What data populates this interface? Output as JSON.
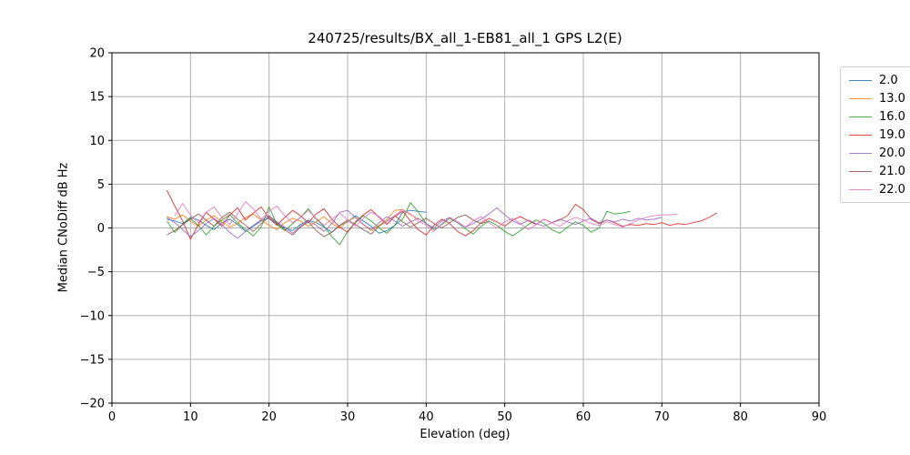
{
  "chart_data": {
    "type": "line",
    "title": "240725/results/BX_all_1-EB81_all_1 GPS L2(E)",
    "xlabel": "Elevation (deg)",
    "ylabel": "Median CNoDiff dB Hz",
    "xlim": [
      0,
      90
    ],
    "ylim": [
      -20,
      20
    ],
    "xticks": [
      0,
      10,
      20,
      30,
      40,
      50,
      60,
      70,
      80,
      90
    ],
    "yticks": [
      -20,
      -15,
      -10,
      -5,
      0,
      5,
      10,
      15,
      20
    ],
    "grid": true,
    "grid_color": "#b0b0b0",
    "spine_color": "#000000",
    "legend_position": "outside-upper-right",
    "series": [
      {
        "name": "2.0",
        "color": "#1f77b4",
        "x_start": 7,
        "x_step": 1,
        "y": [
          1.0,
          0.8,
          0.5,
          1.2,
          0.9,
          0.3,
          -0.2,
          0.6,
          1.0,
          0.4,
          -0.4,
          0.2,
          0.8,
          1.1,
          0.5,
          0.0,
          -0.3,
          0.4,
          0.9,
          0.6,
          0.1,
          -0.5,
          0.3,
          0.7,
          1.4,
          0.8,
          0.2,
          -0.6,
          -0.3,
          0.3,
          1.8,
          2.0,
          1.9,
          1.8
        ]
      },
      {
        "name": "13.0",
        "color": "#ff7f0e",
        "x_start": 7,
        "x_step": 1,
        "y": [
          1.3,
          1.0,
          1.5,
          0.8,
          0.2,
          0.9,
          1.4,
          0.7,
          0.1,
          0.5,
          1.2,
          1.6,
          0.9,
          0.3,
          -0.2,
          0.6,
          1.1,
          0.8,
          0.2,
          0.7,
          1.3,
          0.5,
          0.0,
          0.8,
          1.2,
          0.4,
          -0.3,
          0.3,
          1.0,
          2.0,
          2.1,
          1.5,
          1.0
        ]
      },
      {
        "name": "16.0",
        "color": "#2ca02c",
        "x_start": 7,
        "x_step": 1,
        "y": [
          0.8,
          -0.5,
          0.4,
          1.1,
          0.3,
          -0.8,
          0.2,
          0.9,
          1.5,
          0.6,
          -0.2,
          -0.9,
          0.1,
          2.4,
          0.4,
          -0.3,
          0.5,
          1.2,
          2.2,
          1.0,
          0.2,
          -1.0,
          -1.9,
          -0.4,
          0.6,
          1.4,
          0.8,
          0.0,
          -0.6,
          0.3,
          1.0,
          2.9,
          1.8,
          0.5,
          -0.2,
          0.4,
          1.1,
          0.6,
          -0.1,
          -0.7,
          0.2,
          0.8,
          0.3,
          -0.4,
          -0.9,
          -0.3,
          0.4,
          0.9,
          0.5,
          -0.2,
          -0.6,
          0.1,
          0.7,
          0.3,
          -0.5,
          0.0,
          1.9,
          1.6,
          1.7,
          1.9
        ]
      },
      {
        "name": "19.0",
        "color": "#d62728",
        "x_start": 7,
        "x_step": 1,
        "y": [
          4.3,
          2.5,
          0.8,
          -1.3,
          0.4,
          1.8,
          1.0,
          0.2,
          1.5,
          2.3,
          0.9,
          1.7,
          2.4,
          1.1,
          0.3,
          1.2,
          2.0,
          1.4,
          0.6,
          1.6,
          2.2,
          1.0,
          0.1,
          -0.5,
          0.7,
          1.5,
          2.1,
          1.2,
          0.4,
          1.3,
          1.9,
          0.8,
          -0.2,
          -0.8,
          0.3,
          1.0,
          0.5,
          -0.4,
          -0.9,
          -0.3,
          0.6,
          1.1,
          0.7,
          0.2,
          0.9,
          1.3,
          0.8,
          0.4,
          1.0,
          0.6,
          0.9,
          1.4,
          2.7,
          2.1,
          1.0,
          0.5,
          0.9,
          0.6,
          0.2,
          0.4,
          0.3,
          0.5,
          0.4,
          0.6,
          0.3,
          0.5,
          0.4,
          0.6,
          0.8,
          1.2,
          1.7
        ]
      },
      {
        "name": "20.0",
        "color": "#9467bd",
        "x_start": 7,
        "x_step": 1,
        "y": [
          1.2,
          0.6,
          -0.2,
          -1.0,
          -0.3,
          0.5,
          1.1,
          0.4,
          -0.5,
          -1.2,
          -0.4,
          0.3,
          0.9,
          1.4,
          0.7,
          0.1,
          -0.6,
          0.2,
          0.8,
          0.3,
          -0.4,
          0.5,
          1.8,
          2.0,
          1.2,
          0.4,
          -0.2,
          0.6,
          1.3,
          0.8,
          0.2,
          0.7,
          1.1,
          0.5,
          0.0,
          0.8,
          1.2,
          0.6,
          0.1,
          0.5,
          1.0,
          1.6,
          2.3,
          1.5,
          0.8,
          0.4,
          0.9,
          0.5,
          0.2,
          0.6,
          1.0,
          0.7,
          0.4,
          0.8,
          1.1,
          0.6,
          0.9,
          0.7,
          1.0,
          0.8,
          1.1,
          0.9,
          1.0,
          1.2
        ]
      },
      {
        "name": "21.0",
        "color": "#8c564b",
        "x_start": 7,
        "x_step": 1,
        "y": [
          -0.8,
          -0.3,
          0.4,
          1.0,
          1.6,
          0.9,
          0.2,
          1.2,
          1.8,
          1.0,
          0.3,
          -0.4,
          0.5,
          1.3,
          0.6,
          -0.2,
          -0.8,
          0.1,
          0.7,
          -0.3,
          -1.0,
          -0.5,
          0.3,
          0.9,
          0.4,
          -0.2,
          -0.7,
          0.2,
          0.8,
          1.4,
          0.7,
          0.1,
          0.6,
          1.1,
          0.5,
          0.0,
          0.6,
          1.2,
          1.5,
          0.9,
          0.5,
          0.8
        ]
      },
      {
        "name": "22.0",
        "color": "#e377c2",
        "x_start": 8,
        "x_step": 1,
        "y": [
          1.4,
          2.8,
          1.5,
          0.6,
          1.8,
          2.4,
          1.2,
          0.4,
          1.6,
          3.0,
          2.2,
          1.0,
          1.9,
          2.5,
          1.4,
          0.6,
          1.2,
          2.0,
          1.1,
          0.3,
          1.0,
          1.7,
          0.9,
          0.2,
          1.1,
          1.8,
          1.3,
          0.5,
          1.4,
          2.1,
          1.6,
          0.8,
          0.3,
          -0.4,
          0.5,
          1.2,
          0.7,
          0.1,
          0.8,
          1.3,
          0.6,
          0.0,
          0.7,
          1.1,
          0.5,
          -0.2,
          0.4,
          1.0,
          0.6,
          0.2,
          0.8,
          1.2,
          0.9,
          0.5,
          0.3,
          0.7,
          0.4,
          0.1,
          0.5,
          0.9,
          1.2,
          1.4,
          1.5,
          1.5,
          1.6
        ]
      }
    ]
  }
}
